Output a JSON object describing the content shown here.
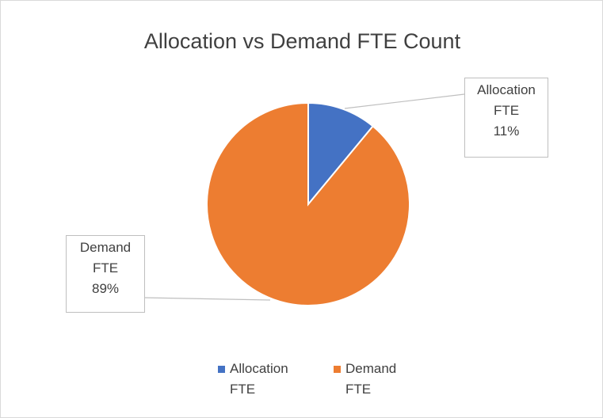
{
  "chart_data": {
    "type": "pie",
    "title": "Allocation vs Demand FTE Count",
    "categories": [
      "Allocation FTE",
      "Demand FTE"
    ],
    "values": [
      11,
      89
    ],
    "value_labels": [
      "11%",
      "89%"
    ],
    "colors": [
      "#4472c4",
      "#ed7d31"
    ],
    "legend": "bottom"
  }
}
